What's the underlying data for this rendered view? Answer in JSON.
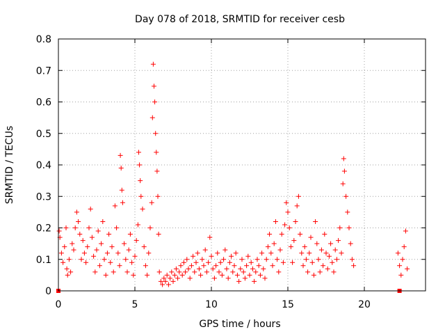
{
  "chart_data": {
    "type": "scatter",
    "title": "Day 078 of 2018, SRMTID for receiver cesb",
    "xlabel": "GPS time / hours",
    "ylabel": "SRMTID / TECUs",
    "xlim": [
      0,
      24
    ],
    "ylim": [
      0,
      0.8
    ],
    "x_ticks": [
      0,
      5,
      10,
      15,
      20
    ],
    "x_tick_labels": [
      "0",
      "5",
      "10",
      "15",
      "20"
    ],
    "y_ticks": [
      0,
      0.1,
      0.2,
      0.3,
      0.4,
      0.5,
      0.6,
      0.7,
      0.8
    ],
    "y_tick_labels": [
      "0",
      "0.1",
      "0.2",
      "0.3",
      "0.4",
      "0.5",
      "0.6",
      "0.7",
      "0.8"
    ],
    "grid": true,
    "marker": "plus",
    "color": "#ff0000",
    "series": [
      {
        "name": "SRMTID",
        "points": [
          [
            0.05,
            0.19
          ],
          [
            0.1,
            0.17
          ],
          [
            0.2,
            0.12
          ],
          [
            0.3,
            0.09
          ],
          [
            0.4,
            0.14
          ],
          [
            0.5,
            0.2
          ],
          [
            0.55,
            0.07
          ],
          [
            0.6,
            0.05
          ],
          [
            0.7,
            0.1
          ],
          [
            0.8,
            0.06
          ],
          [
            0.9,
            0.15
          ],
          [
            1.0,
            0.13
          ],
          [
            1.1,
            0.2
          ],
          [
            1.2,
            0.25
          ],
          [
            1.3,
            0.22
          ],
          [
            1.4,
            0.18
          ],
          [
            1.5,
            0.1
          ],
          [
            1.6,
            0.16
          ],
          [
            1.7,
            0.12
          ],
          [
            1.8,
            0.09
          ],
          [
            1.9,
            0.14
          ],
          [
            2.0,
            0.2
          ],
          [
            2.1,
            0.26
          ],
          [
            2.2,
            0.17
          ],
          [
            2.3,
            0.11
          ],
          [
            2.4,
            0.06
          ],
          [
            2.5,
            0.13
          ],
          [
            2.6,
            0.19
          ],
          [
            2.7,
            0.08
          ],
          [
            2.8,
            0.15
          ],
          [
            2.9,
            0.22
          ],
          [
            3.0,
            0.1
          ],
          [
            3.1,
            0.05
          ],
          [
            3.2,
            0.12
          ],
          [
            3.3,
            0.18
          ],
          [
            3.4,
            0.09
          ],
          [
            3.5,
            0.14
          ],
          [
            3.6,
            0.06
          ],
          [
            3.7,
            0.27
          ],
          [
            3.8,
            0.2
          ],
          [
            3.9,
            0.12
          ],
          [
            4.0,
            0.08
          ],
          [
            4.05,
            0.43
          ],
          [
            4.1,
            0.39
          ],
          [
            4.15,
            0.32
          ],
          [
            4.2,
            0.28
          ],
          [
            4.3,
            0.15
          ],
          [
            4.4,
            0.1
          ],
          [
            4.5,
            0.06
          ],
          [
            4.6,
            0.13
          ],
          [
            4.7,
            0.18
          ],
          [
            4.8,
            0.09
          ],
          [
            4.9,
            0.05
          ],
          [
            5.0,
            0.11
          ],
          [
            5.1,
            0.16
          ],
          [
            5.2,
            0.21
          ],
          [
            5.25,
            0.44
          ],
          [
            5.3,
            0.4
          ],
          [
            5.35,
            0.35
          ],
          [
            5.4,
            0.3
          ],
          [
            5.5,
            0.26
          ],
          [
            5.6,
            0.14
          ],
          [
            5.7,
            0.08
          ],
          [
            5.8,
            0.05
          ],
          [
            5.9,
            0.12
          ],
          [
            6.0,
            0.2
          ],
          [
            6.1,
            0.28
          ],
          [
            6.15,
            0.55
          ],
          [
            6.2,
            0.72
          ],
          [
            6.25,
            0.65
          ],
          [
            6.3,
            0.6
          ],
          [
            6.35,
            0.5
          ],
          [
            6.4,
            0.44
          ],
          [
            6.45,
            0.38
          ],
          [
            6.5,
            0.3
          ],
          [
            6.55,
            0.18
          ],
          [
            6.6,
            0.06
          ],
          [
            6.7,
            0.03
          ],
          [
            6.8,
            0.02
          ],
          [
            6.9,
            0.04
          ],
          [
            7.0,
            0.03
          ],
          [
            7.1,
            0.05
          ],
          [
            7.2,
            0.02
          ],
          [
            7.3,
            0.04
          ],
          [
            7.4,
            0.06
          ],
          [
            7.5,
            0.03
          ],
          [
            7.6,
            0.05
          ],
          [
            7.7,
            0.07
          ],
          [
            7.8,
            0.04
          ],
          [
            7.9,
            0.06
          ],
          [
            8.0,
            0.08
          ],
          [
            8.1,
            0.05
          ],
          [
            8.2,
            0.09
          ],
          [
            8.3,
            0.06
          ],
          [
            8.4,
            0.1
          ],
          [
            8.5,
            0.07
          ],
          [
            8.6,
            0.04
          ],
          [
            8.7,
            0.08
          ],
          [
            8.8,
            0.11
          ],
          [
            8.9,
            0.06
          ],
          [
            9.0,
            0.09
          ],
          [
            9.1,
            0.12
          ],
          [
            9.2,
            0.07
          ],
          [
            9.3,
            0.05
          ],
          [
            9.4,
            0.1
          ],
          [
            9.5,
            0.08
          ],
          [
            9.6,
            0.13
          ],
          [
            9.7,
            0.06
          ],
          [
            9.8,
            0.09
          ],
          [
            9.9,
            0.17
          ],
          [
            10.0,
            0.11
          ],
          [
            10.1,
            0.07
          ],
          [
            10.2,
            0.04
          ],
          [
            10.3,
            0.08
          ],
          [
            10.4,
            0.12
          ],
          [
            10.5,
            0.06
          ],
          [
            10.6,
            0.09
          ],
          [
            10.7,
            0.05
          ],
          [
            10.8,
            0.1
          ],
          [
            10.9,
            0.13
          ],
          [
            11.0,
            0.07
          ],
          [
            11.1,
            0.04
          ],
          [
            11.2,
            0.09
          ],
          [
            11.3,
            0.11
          ],
          [
            11.4,
            0.06
          ],
          [
            11.5,
            0.08
          ],
          [
            11.6,
            0.12
          ],
          [
            11.7,
            0.05
          ],
          [
            11.8,
            0.03
          ],
          [
            11.9,
            0.07
          ],
          [
            12.0,
            0.1
          ],
          [
            12.1,
            0.06
          ],
          [
            12.2,
            0.04
          ],
          [
            12.3,
            0.08
          ],
          [
            12.4,
            0.11
          ],
          [
            12.5,
            0.05
          ],
          [
            12.6,
            0.09
          ],
          [
            12.7,
            0.07
          ],
          [
            12.8,
            0.03
          ],
          [
            12.9,
            0.06
          ],
          [
            13.0,
            0.1
          ],
          [
            13.1,
            0.08
          ],
          [
            13.2,
            0.05
          ],
          [
            13.3,
            0.12
          ],
          [
            13.4,
            0.07
          ],
          [
            13.5,
            0.04
          ],
          [
            13.6,
            0.1
          ],
          [
            13.7,
            0.14
          ],
          [
            13.8,
            0.18
          ],
          [
            13.9,
            0.12
          ],
          [
            14.0,
            0.08
          ],
          [
            14.1,
            0.15
          ],
          [
            14.2,
            0.22
          ],
          [
            14.3,
            0.1
          ],
          [
            14.4,
            0.06
          ],
          [
            14.5,
            0.13
          ],
          [
            14.6,
            0.18
          ],
          [
            14.7,
            0.09
          ],
          [
            14.8,
            0.21
          ],
          [
            14.9,
            0.28
          ],
          [
            15.0,
            0.25
          ],
          [
            15.1,
            0.2
          ],
          [
            15.2,
            0.14
          ],
          [
            15.3,
            0.09
          ],
          [
            15.4,
            0.16
          ],
          [
            15.5,
            0.22
          ],
          [
            15.6,
            0.27
          ],
          [
            15.7,
            0.3
          ],
          [
            15.8,
            0.18
          ],
          [
            15.9,
            0.12
          ],
          [
            16.0,
            0.08
          ],
          [
            16.1,
            0.14
          ],
          [
            16.2,
            0.1
          ],
          [
            16.3,
            0.06
          ],
          [
            16.4,
            0.12
          ],
          [
            16.5,
            0.17
          ],
          [
            16.6,
            0.09
          ],
          [
            16.7,
            0.05
          ],
          [
            16.8,
            0.22
          ],
          [
            16.9,
            0.15
          ],
          [
            17.0,
            0.1
          ],
          [
            17.1,
            0.06
          ],
          [
            17.2,
            0.13
          ],
          [
            17.3,
            0.08
          ],
          [
            17.4,
            0.18
          ],
          [
            17.5,
            0.12
          ],
          [
            17.6,
            0.07
          ],
          [
            17.7,
            0.11
          ],
          [
            17.8,
            0.15
          ],
          [
            17.9,
            0.09
          ],
          [
            18.0,
            0.06
          ],
          [
            18.1,
            0.13
          ],
          [
            18.2,
            0.1
          ],
          [
            18.3,
            0.16
          ],
          [
            18.4,
            0.2
          ],
          [
            18.5,
            0.12
          ],
          [
            18.6,
            0.34
          ],
          [
            18.65,
            0.42
          ],
          [
            18.7,
            0.38
          ],
          [
            18.8,
            0.3
          ],
          [
            18.9,
            0.25
          ],
          [
            19.0,
            0.2
          ],
          [
            19.1,
            0.15
          ],
          [
            19.2,
            0.1
          ],
          [
            19.3,
            0.08
          ],
          [
            22.2,
            0.12
          ],
          [
            22.3,
            0.08
          ],
          [
            22.4,
            0.05
          ],
          [
            22.5,
            0.1
          ],
          [
            22.6,
            0.14
          ],
          [
            22.7,
            0.19
          ],
          [
            22.8,
            0.07
          ]
        ]
      }
    ],
    "special_points": [
      [
        0,
        0
      ],
      [
        22.3,
        0
      ]
    ]
  }
}
